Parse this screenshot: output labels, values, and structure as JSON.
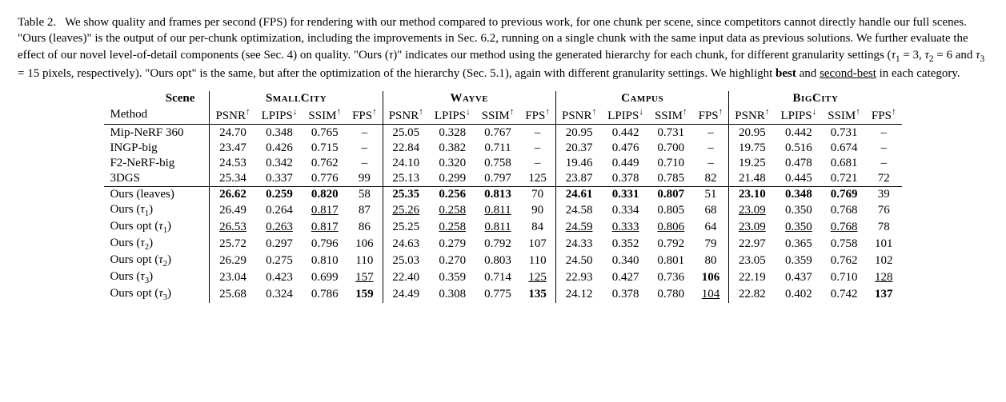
{
  "caption": {
    "label": "Table 2.",
    "body": "We show quality and frames per second (FPS) for rendering with our method compared to previous work, for one chunk per scene, since competitors cannot directly handle our full scenes. \"Ours (leaves)\" is the output of our per-chunk optimization, including the improvements in Sec. 6.2, running on a single chunk with the same input data as previous solutions. We further evaluate the effect of our novel level-of-detail components (see Sec. 4) on quality. \"Ours (τ)\" indicates our method using the generated hierarchy for each chunk, for different granularity settings (τ₁ = 3, τ₂ = 6 and τ₃ = 15 pixels, respectively). \"Ours opt\" is the same, but after the optimization of the hierarchy (Sec. 5.1), again with different granularity settings. We highlight best and second-best in each category.",
    "best_word": "best",
    "second_best_word": "second-best"
  },
  "table": {
    "scene_label": "Scene",
    "method_label": "Method",
    "scenes": [
      "SmallCity",
      "Wayve",
      "Campus",
      "BigCity"
    ],
    "metrics": [
      {
        "name": "PSNR",
        "dir": "up"
      },
      {
        "name": "LPIPS",
        "dir": "down"
      },
      {
        "name": "SSIM",
        "dir": "up"
      },
      {
        "name": "FPS",
        "dir": "up"
      }
    ],
    "arrow_up": "↑",
    "arrow_down": "↓",
    "methods": [
      {
        "label": "Mip-NeRF 360",
        "tau": null,
        "opt": false
      },
      {
        "label": "INGP-big",
        "tau": null,
        "opt": false
      },
      {
        "label": "F2-NeRF-big",
        "tau": null,
        "opt": false
      },
      {
        "label": "3DGS",
        "tau": null,
        "opt": false
      },
      {
        "label": "Ours (leaves)",
        "tau": null,
        "opt": false
      },
      {
        "label": "Ours",
        "tau": 1,
        "opt": false
      },
      {
        "label": "Ours opt",
        "tau": 1,
        "opt": true
      },
      {
        "label": "Ours",
        "tau": 2,
        "opt": false
      },
      {
        "label": "Ours opt",
        "tau": 2,
        "opt": true
      },
      {
        "label": "Ours",
        "tau": 3,
        "opt": false
      },
      {
        "label": "Ours opt",
        "tau": 3,
        "opt": true
      }
    ],
    "data": [
      [
        [
          "24.70",
          "0.348",
          "0.765",
          "–"
        ],
        [
          "25.05",
          "0.328",
          "0.767",
          "–"
        ],
        [
          "20.95",
          "0.442",
          "0.731",
          "–"
        ],
        [
          "20.95",
          "0.442",
          "0.731",
          "–"
        ]
      ],
      [
        [
          "23.47",
          "0.426",
          "0.715",
          "–"
        ],
        [
          "22.84",
          "0.382",
          "0.711",
          "–"
        ],
        [
          "20.37",
          "0.476",
          "0.700",
          "–"
        ],
        [
          "19.75",
          "0.516",
          "0.674",
          "–"
        ]
      ],
      [
        [
          "24.53",
          "0.342",
          "0.762",
          "–"
        ],
        [
          "24.10",
          "0.320",
          "0.758",
          "–"
        ],
        [
          "19.46",
          "0.449",
          "0.710",
          "–"
        ],
        [
          "19.25",
          "0.478",
          "0.681",
          "–"
        ]
      ],
      [
        [
          "25.34",
          "0.337",
          "0.776",
          "99"
        ],
        [
          "25.13",
          "0.299",
          "0.797",
          "125"
        ],
        [
          "23.87",
          "0.378",
          "0.785",
          "82"
        ],
        [
          "21.48",
          "0.445",
          "0.721",
          "72"
        ]
      ],
      [
        [
          "26.62",
          "0.259",
          "0.820",
          "58"
        ],
        [
          "25.35",
          "0.256",
          "0.813",
          "70"
        ],
        [
          "24.61",
          "0.331",
          "0.807",
          "51"
        ],
        [
          "23.10",
          "0.348",
          "0.769",
          "39"
        ]
      ],
      [
        [
          "26.49",
          "0.264",
          "0.817",
          "87"
        ],
        [
          "25.26",
          "0.258",
          "0.811",
          "90"
        ],
        [
          "24.58",
          "0.334",
          "0.805",
          "68"
        ],
        [
          "23.09",
          "0.350",
          "0.768",
          "76"
        ]
      ],
      [
        [
          "26.53",
          "0.263",
          "0.817",
          "86"
        ],
        [
          "25.25",
          "0.258",
          "0.811",
          "84"
        ],
        [
          "24.59",
          "0.333",
          "0.806",
          "64"
        ],
        [
          "23.09",
          "0.350",
          "0.768",
          "78"
        ]
      ],
      [
        [
          "25.72",
          "0.297",
          "0.796",
          "106"
        ],
        [
          "24.63",
          "0.279",
          "0.792",
          "107"
        ],
        [
          "24.33",
          "0.352",
          "0.792",
          "79"
        ],
        [
          "22.97",
          "0.365",
          "0.758",
          "101"
        ]
      ],
      [
        [
          "26.29",
          "0.275",
          "0.810",
          "110"
        ],
        [
          "25.03",
          "0.270",
          "0.803",
          "110"
        ],
        [
          "24.50",
          "0.340",
          "0.801",
          "80"
        ],
        [
          "23.05",
          "0.359",
          "0.762",
          "102"
        ]
      ],
      [
        [
          "23.04",
          "0.423",
          "0.699",
          "157"
        ],
        [
          "22.40",
          "0.359",
          "0.714",
          "125"
        ],
        [
          "22.93",
          "0.427",
          "0.736",
          "106"
        ],
        [
          "22.19",
          "0.437",
          "0.710",
          "128"
        ]
      ],
      [
        [
          "25.68",
          "0.324",
          "0.786",
          "159"
        ],
        [
          "24.49",
          "0.308",
          "0.775",
          "135"
        ],
        [
          "24.12",
          "0.378",
          "0.780",
          "104"
        ],
        [
          "22.82",
          "0.402",
          "0.742",
          "137"
        ]
      ]
    ],
    "styles": [
      [
        [
          "",
          "",
          "",
          ""
        ],
        [
          "",
          "",
          "",
          ""
        ],
        [
          "",
          "",
          "",
          ""
        ],
        [
          "",
          "",
          "",
          ""
        ]
      ],
      [
        [
          "",
          "",
          "",
          ""
        ],
        [
          "",
          "",
          "",
          ""
        ],
        [
          "",
          "",
          "",
          ""
        ],
        [
          "",
          "",
          "",
          ""
        ]
      ],
      [
        [
          "",
          "",
          "",
          ""
        ],
        [
          "",
          "",
          "",
          ""
        ],
        [
          "",
          "",
          "",
          ""
        ],
        [
          "",
          "",
          "",
          ""
        ]
      ],
      [
        [
          "",
          "",
          "",
          ""
        ],
        [
          "",
          "",
          "",
          ""
        ],
        [
          "",
          "",
          "",
          ""
        ],
        [
          "",
          "",
          "",
          ""
        ]
      ],
      [
        [
          "b",
          "b",
          "b",
          ""
        ],
        [
          "b",
          "b",
          "b",
          ""
        ],
        [
          "b",
          "b",
          "b",
          ""
        ],
        [
          "b",
          "b",
          "b",
          ""
        ]
      ],
      [
        [
          "",
          "",
          "u",
          ""
        ],
        [
          "u",
          "u",
          "u",
          ""
        ],
        [
          "",
          "",
          "",
          ""
        ],
        [
          "u",
          "",
          "",
          ""
        ]
      ],
      [
        [
          "u",
          "u",
          "u",
          ""
        ],
        [
          "",
          "u",
          "u",
          ""
        ],
        [
          "u",
          "u",
          "u",
          ""
        ],
        [
          "u",
          "u",
          "u",
          ""
        ]
      ],
      [
        [
          "",
          "",
          "",
          ""
        ],
        [
          "",
          "",
          "",
          ""
        ],
        [
          "",
          "",
          "",
          ""
        ],
        [
          "",
          "",
          "",
          ""
        ]
      ],
      [
        [
          "",
          "",
          "",
          ""
        ],
        [
          "",
          "",
          "",
          ""
        ],
        [
          "",
          "",
          "",
          ""
        ],
        [
          "",
          "",
          "",
          ""
        ]
      ],
      [
        [
          "",
          "",
          "",
          "u"
        ],
        [
          "",
          "",
          "",
          "u"
        ],
        [
          "",
          "",
          "",
          "b"
        ],
        [
          "",
          "",
          "",
          "u"
        ]
      ],
      [
        [
          "",
          "",
          "",
          "b"
        ],
        [
          "",
          "",
          "",
          "b"
        ],
        [
          "",
          "",
          "",
          "u"
        ],
        [
          "",
          "",
          "",
          "b"
        ]
      ]
    ],
    "rule_above_row": 4,
    "font_size_pt": 15,
    "colors": {
      "text": "#000000",
      "background": "#ffffff",
      "rule": "#000000"
    }
  }
}
